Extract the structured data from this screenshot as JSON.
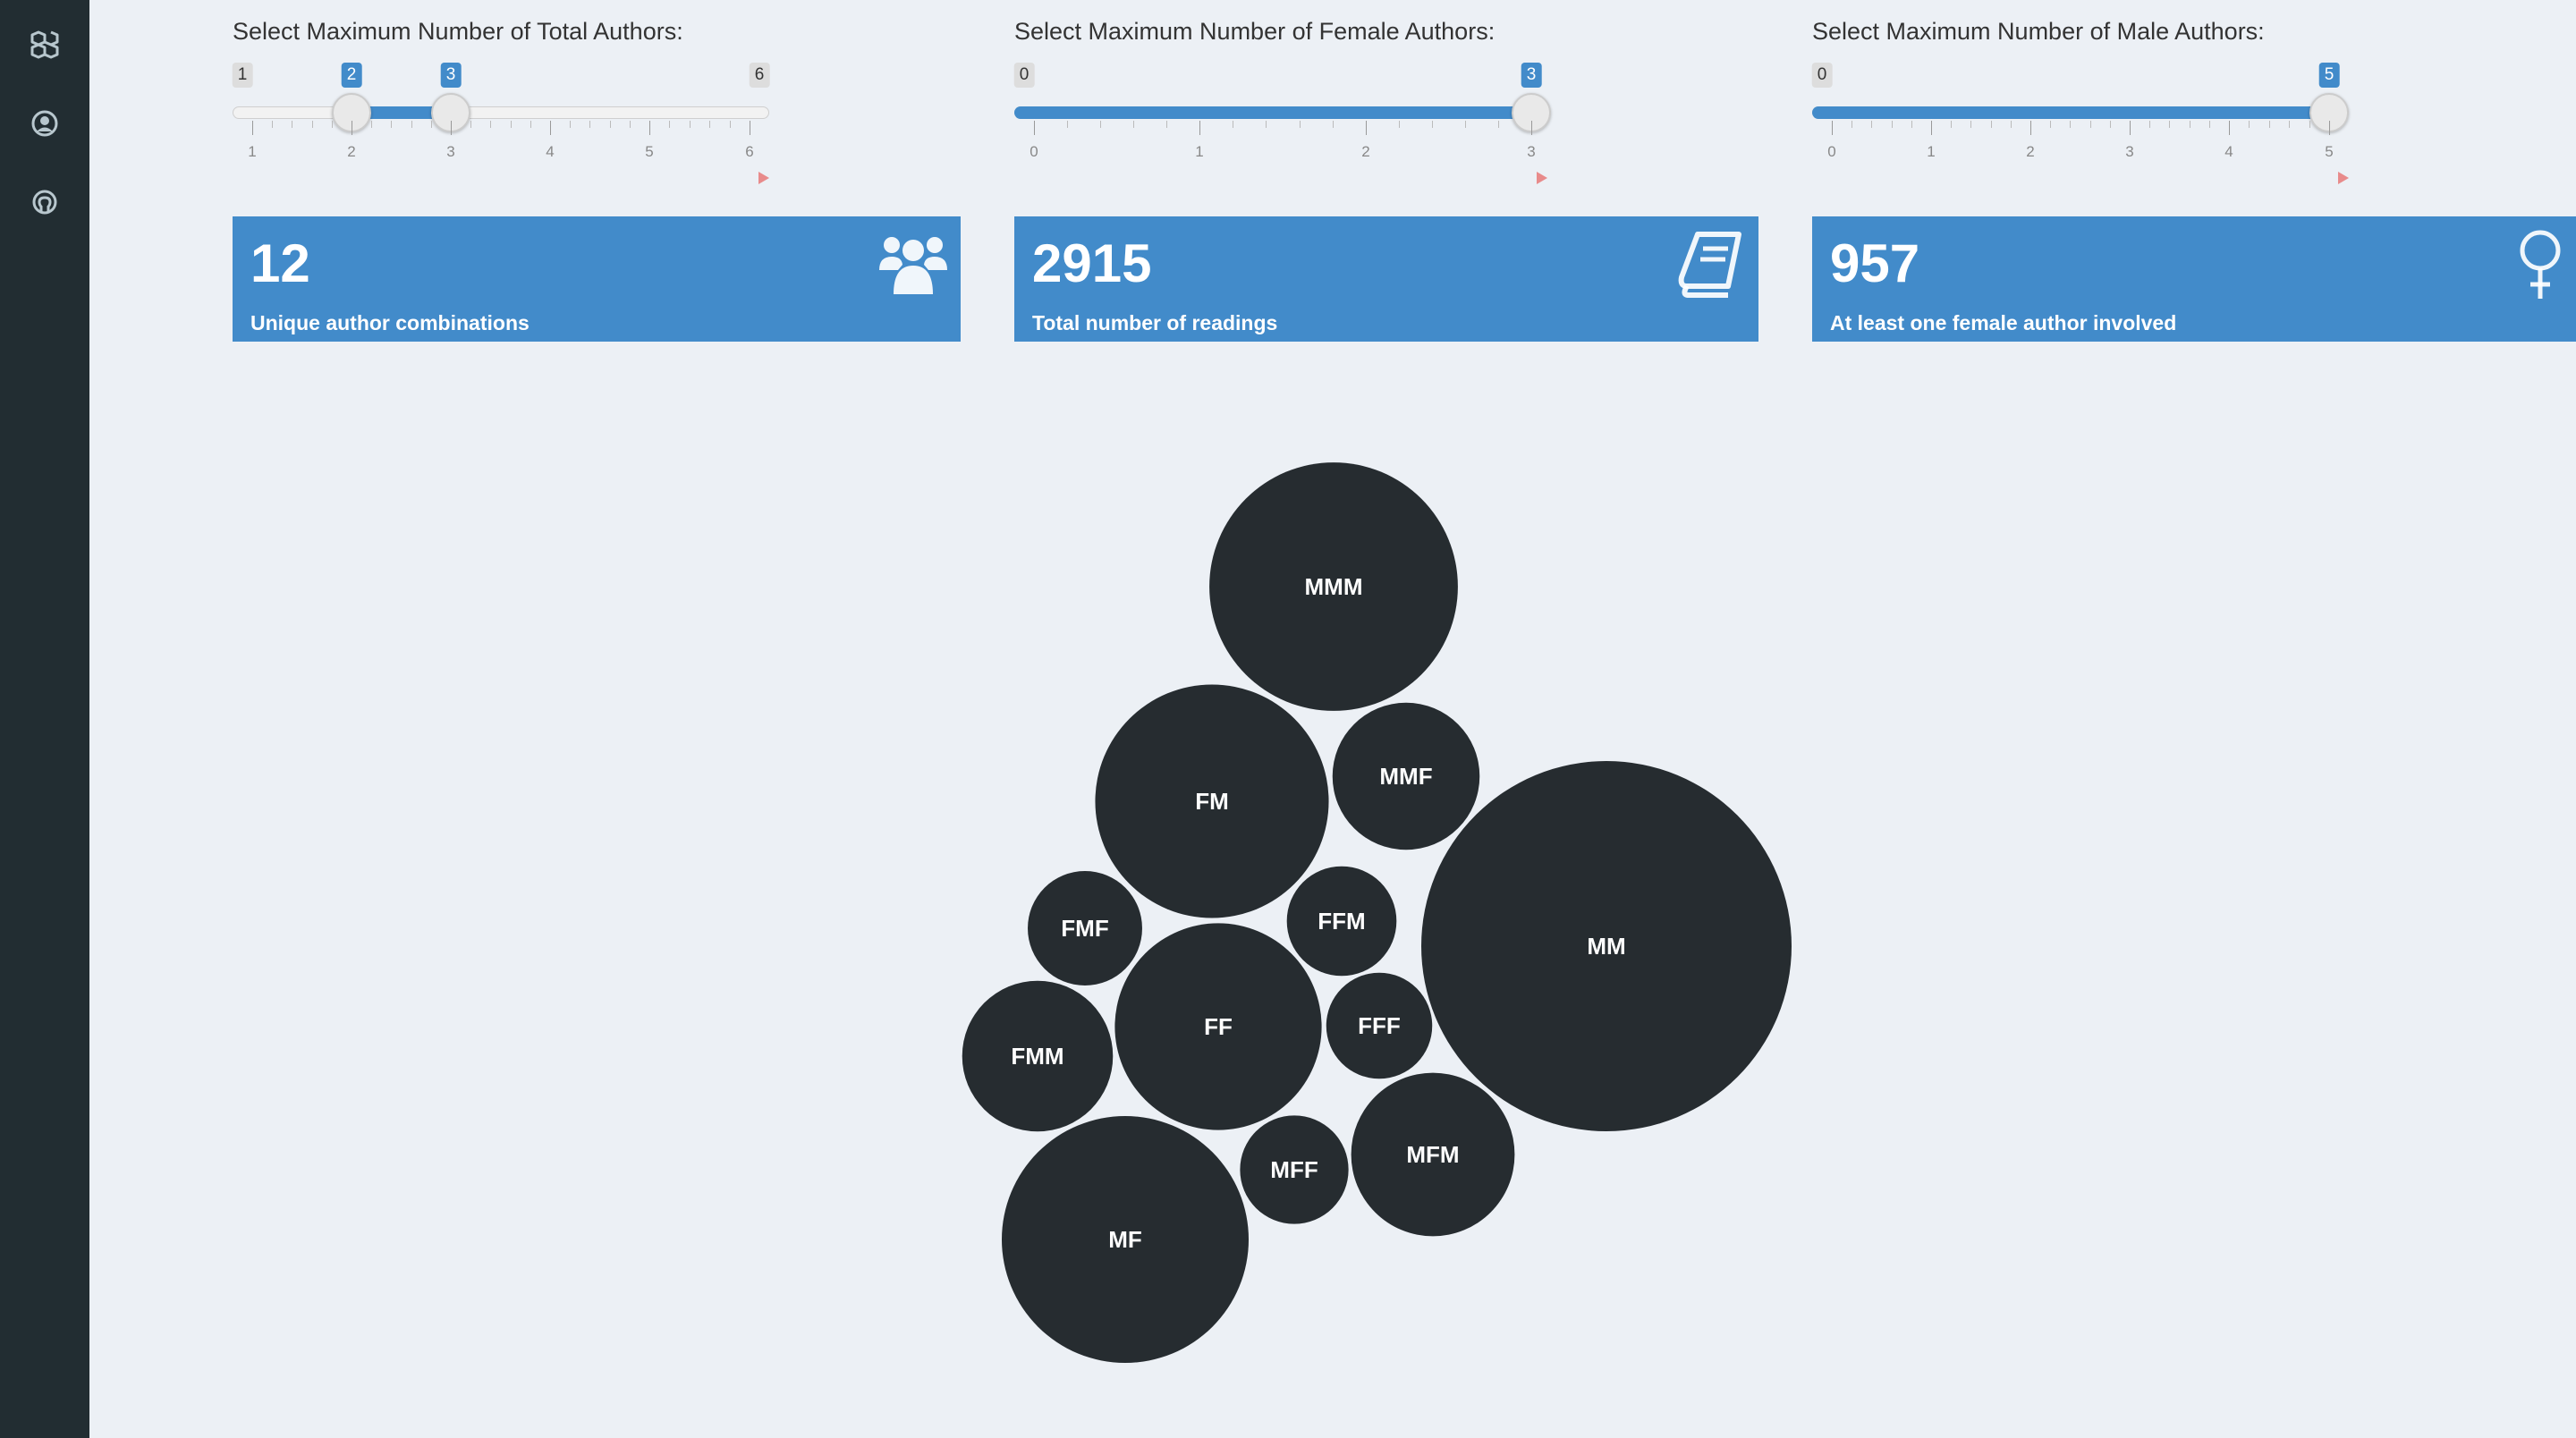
{
  "sidebar": {
    "icons": [
      "cubes-icon",
      "user-circle-icon",
      "github-icon"
    ]
  },
  "sliders": [
    {
      "label": "Select Maximum Number of Total Authors:",
      "min": 1,
      "max": 6,
      "low": 2,
      "high": 3,
      "ticks": [
        1,
        2,
        3,
        4,
        5,
        6
      ],
      "min_label": "1",
      "max_label": "6",
      "low_label": "2",
      "high_label": "3"
    },
    {
      "label": "Select Maximum Number of Female Authors:",
      "min": 0,
      "max": 3,
      "low": 0,
      "high": 3,
      "ticks": [
        0,
        1,
        2,
        3
      ],
      "min_label": "0",
      "high_label": "3"
    },
    {
      "label": "Select Maximum Number of Male Authors:",
      "min": 0,
      "max": 5,
      "low": 0,
      "high": 5,
      "ticks": [
        0,
        1,
        2,
        3,
        4,
        5
      ],
      "min_label": "0",
      "high_label": "5"
    }
  ],
  "value_boxes": [
    {
      "value": "12",
      "caption": "Unique author combinations",
      "icon": "users-icon"
    },
    {
      "value": "2915",
      "caption": "Total number of readings",
      "icon": "book-icon"
    },
    {
      "value": "957",
      "caption": "At least one female author involved",
      "icon": "female-icon"
    }
  ],
  "colors": {
    "sidebar": "#222d32",
    "background": "#ecf0f5",
    "accent": "#428bca",
    "bubble": "#262c30"
  },
  "chart_data": {
    "type": "bubble",
    "series": [
      {
        "label": "MMM",
        "size": 2310
      },
      {
        "label": "FM",
        "size": 2040
      },
      {
        "label": "MMF",
        "size": 810
      },
      {
        "label": "MM",
        "size": 5130
      },
      {
        "label": "FMF",
        "size": 490
      },
      {
        "label": "FFM",
        "size": 450
      },
      {
        "label": "FF",
        "size": 1600
      },
      {
        "label": "FFF",
        "size": 420
      },
      {
        "label": "FMM",
        "size": 850
      },
      {
        "label": "MFF",
        "size": 440
      },
      {
        "label": "MFM",
        "size": 1000
      },
      {
        "label": "MF",
        "size": 2280
      }
    ]
  }
}
